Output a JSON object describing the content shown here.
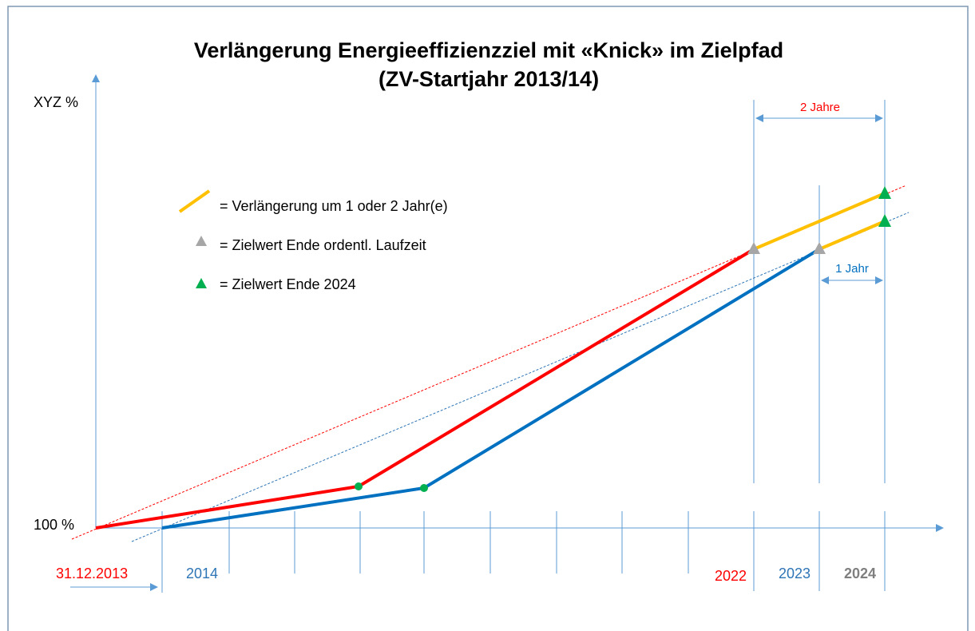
{
  "title": {
    "line1": "Verlängerung Energieeffizienzziel mit «Knick» im Zielpfad",
    "line2": "(ZV-Startjahr 2013/14)"
  },
  "axis": {
    "y_label": "XYZ %",
    "y_start": "100 %"
  },
  "legend": {
    "extension": "= Verlängerung um 1 oder 2 Jahr(e)",
    "target_regular": "= Zielwert Ende ordentl. Laufzeit",
    "target_2024": "= Zielwert Ende 2024"
  },
  "spans": {
    "two_years": "2 Jahre",
    "one_year": "1 Jahr"
  },
  "x_labels": {
    "start_date": "31.12.2013",
    "start_year": "2014",
    "end_red": "2022",
    "end_blue": "2023",
    "end_2024": "2024"
  }
}
